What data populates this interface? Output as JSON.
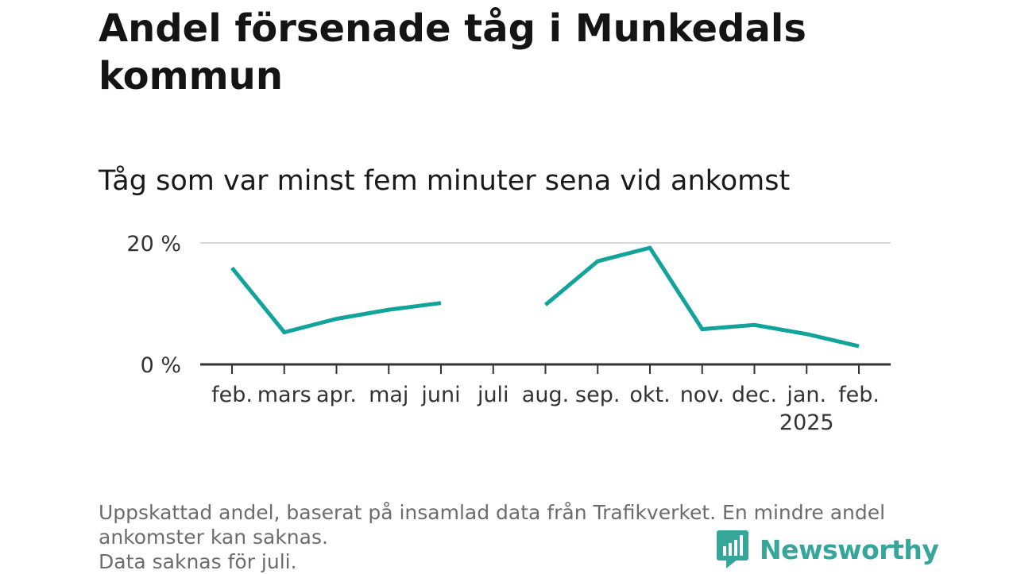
{
  "title": "Andel försenade tåg i Munkedals kommun",
  "subtitle": "Tåg som var minst fem minuter sena vid ankomst",
  "footnote": {
    "line1": "Uppskattad andel, baserat på insamlad data från Trafikverket. En mindre andel",
    "line2": "ankomster kan saknas.",
    "line3": "Data saknas för juli."
  },
  "brand": {
    "name": "Newsworthy",
    "icon": "newsworthy-logo-icon",
    "color": "#36a69b"
  },
  "chart_data": {
    "type": "line",
    "title": "Andel försenade tåg i Munkedals kommun",
    "subtitle": "Tåg som var minst fem minuter sena vid ankomst",
    "categories": [
      "feb.",
      "mars",
      "apr.",
      "maj",
      "juni",
      "juli",
      "aug.",
      "sep.",
      "okt.",
      "nov.",
      "dec.",
      "jan.",
      "feb."
    ],
    "category_sublabels": [
      "",
      "",
      "",
      "",
      "",
      "",
      "",
      "",
      "",
      "",
      "",
      "2025",
      ""
    ],
    "series": [
      {
        "color": "#12a39a",
        "values": [
          15.9,
          5.3,
          7.5,
          9.0,
          10.1,
          null,
          9.8,
          17.0,
          19.2,
          5.8,
          6.5,
          5.0,
          3.0
        ]
      }
    ],
    "ylim": [
      0,
      20
    ],
    "yticks": [
      0,
      20
    ],
    "ytick_labels": [
      "0 %",
      "20 %"
    ],
    "grid": true,
    "xlabel": "",
    "ylabel": ""
  }
}
